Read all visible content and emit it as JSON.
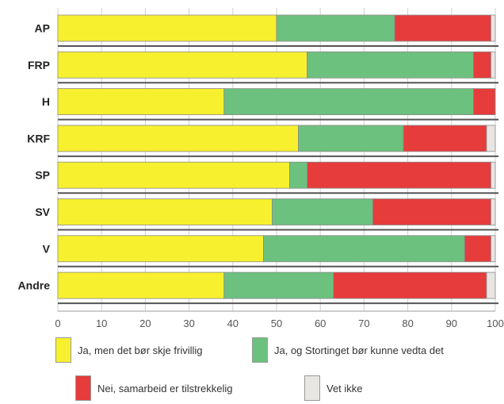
{
  "chart_data": {
    "type": "bar",
    "orientation": "horizontal",
    "stacked": true,
    "categories": [
      "AP",
      "FRP",
      "H",
      "KRF",
      "SP",
      "SV",
      "V",
      "Andre"
    ],
    "series": [
      {
        "name": "Ja, men det bør skje frivillig",
        "color": "#f7f02e",
        "values": [
          50,
          57,
          38,
          55,
          53,
          49,
          47,
          38
        ]
      },
      {
        "name": "Ja, og Stortinget bør kunne vedta det",
        "color": "#6cc17e",
        "values": [
          27,
          38,
          57,
          24,
          4,
          23,
          46,
          25
        ]
      },
      {
        "name": "Nei, samarbeid er tilstrekkelig",
        "color": "#e63c3c",
        "values": [
          22,
          4,
          5,
          19,
          42,
          27,
          6,
          35
        ]
      },
      {
        "name": "Vet ikke",
        "color": "#e8e6e3",
        "values": [
          1,
          1,
          0,
          2,
          1,
          1,
          1,
          2
        ]
      }
    ],
    "xlim": [
      0,
      100
    ],
    "xticks": [
      "0",
      "10",
      "20",
      "30",
      "40",
      "50",
      "60",
      "70",
      "80",
      "90",
      "100"
    ],
    "grid": true,
    "legend_position": "bottom"
  }
}
